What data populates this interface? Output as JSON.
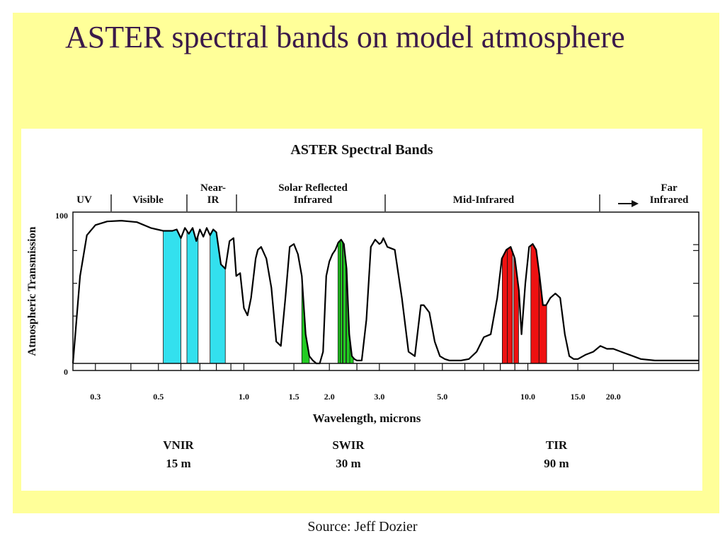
{
  "slide": {
    "title": "ASTER spectral bands on model atmosphere",
    "source": "Source: Jeff Dozier"
  },
  "chart_data": {
    "type": "area",
    "title": "ASTER Spectral Bands",
    "xlabel": "Wavelength, microns",
    "ylabel": "Atmospheric Transmission",
    "x_scale": "log",
    "xlim": [
      0.25,
      40
    ],
    "ylim": [
      0,
      100
    ],
    "x_ticks": [
      "0.3",
      "0.5",
      "1.0",
      "1.5",
      "2.0",
      "3.0",
      "5.0",
      "10.0",
      "15.0",
      "20.0"
    ],
    "y_ticks": [
      "0",
      "100"
    ],
    "regions": [
      {
        "label": "UV"
      },
      {
        "label": "Visible"
      },
      {
        "label": "Near-\nIR"
      },
      {
        "label": "Solar Reflected\nInfrared"
      },
      {
        "label": "Mid-Infrared"
      },
      {
        "label": "Far\nInfrared"
      }
    ],
    "series": [
      {
        "color": "#000000",
        "x": [
          0.25,
          0.255,
          0.265,
          0.28,
          0.3,
          0.33,
          0.37,
          0.42,
          0.47,
          0.52,
          0.56,
          0.58,
          0.6,
          0.62,
          0.64,
          0.66,
          0.68,
          0.7,
          0.72,
          0.74,
          0.76,
          0.78,
          0.8,
          0.83,
          0.86,
          0.89,
          0.92,
          0.94,
          0.97,
          1.0,
          1.03,
          1.06,
          1.1,
          1.12,
          1.15,
          1.2,
          1.25,
          1.3,
          1.35,
          1.4,
          1.45,
          1.5,
          1.55,
          1.6,
          1.65,
          1.7,
          1.75,
          1.8,
          1.85,
          1.9,
          1.95,
          2.0,
          2.05,
          2.1,
          2.15,
          2.2,
          2.25,
          2.3,
          2.35,
          2.4,
          2.45,
          2.5,
          2.6,
          2.7,
          2.8,
          2.9,
          3.0,
          3.05,
          3.1,
          3.2,
          3.4,
          3.6,
          3.8,
          4.0,
          4.2,
          4.3,
          4.5,
          4.7,
          4.9,
          5.1,
          5.3,
          5.5,
          5.8,
          6.2,
          6.6,
          7.0,
          7.4,
          7.8,
          8.1,
          8.4,
          8.7,
          9.0,
          9.3,
          9.5,
          9.8,
          10.1,
          10.4,
          10.7,
          11.0,
          11.3,
          11.6,
          12.0,
          12.5,
          13.0,
          13.5,
          14.0,
          14.5,
          15.0,
          16.0,
          17.0,
          18.0,
          19.0,
          20.0,
          22.0,
          25.0,
          28.0,
          32.0,
          36.0,
          40.0
        ],
        "values": [
          0,
          20,
          60,
          88,
          95,
          97.5,
          98,
          97,
          93,
          91,
          91,
          92,
          86,
          93,
          89,
          93,
          84,
          92,
          87,
          93,
          88,
          92,
          90,
          68,
          65,
          84,
          86,
          60,
          62,
          38,
          33,
          45,
          72,
          78,
          80,
          72,
          52,
          15,
          12,
          45,
          80,
          82,
          75,
          60,
          20,
          5,
          2,
          0,
          0,
          8,
          60,
          70,
          75,
          78,
          83,
          85,
          82,
          65,
          20,
          5,
          3,
          2,
          2,
          30,
          80,
          85,
          82,
          83,
          86,
          80,
          78,
          45,
          8,
          5,
          40,
          40,
          35,
          15,
          5,
          3,
          2,
          2,
          2,
          3,
          8,
          18,
          20,
          45,
          72,
          78,
          80,
          72,
          50,
          20,
          55,
          80,
          82,
          78,
          60,
          40,
          40,
          45,
          48,
          45,
          20,
          5,
          3,
          3,
          6,
          8,
          12,
          10,
          10,
          7,
          3,
          2,
          2,
          2,
          2
        ]
      }
    ],
    "bands": [
      {
        "group": "VNIR",
        "color": "#33e0ee",
        "ranges": [
          [
            0.52,
            0.6
          ],
          [
            0.63,
            0.69
          ],
          [
            0.76,
            0.86
          ]
        ]
      },
      {
        "group": "SWIR",
        "color": "#22cc22",
        "ranges": [
          [
            1.6,
            1.7
          ],
          [
            2.145,
            2.185
          ],
          [
            2.185,
            2.225
          ],
          [
            2.235,
            2.285
          ],
          [
            2.295,
            2.365
          ],
          [
            2.36,
            2.43
          ]
        ]
      },
      {
        "group": "TIR",
        "color": "#ee1111",
        "ranges": [
          [
            8.125,
            8.475
          ],
          [
            8.475,
            8.825
          ],
          [
            8.925,
            9.275
          ],
          [
            10.25,
            10.95
          ],
          [
            10.95,
            11.65
          ]
        ]
      }
    ],
    "instrument_groups": [
      {
        "name": "VNIR",
        "resolution": "15 m"
      },
      {
        "name": "SWIR",
        "resolution": "30 m"
      },
      {
        "name": "TIR",
        "resolution": "90 m"
      }
    ]
  }
}
